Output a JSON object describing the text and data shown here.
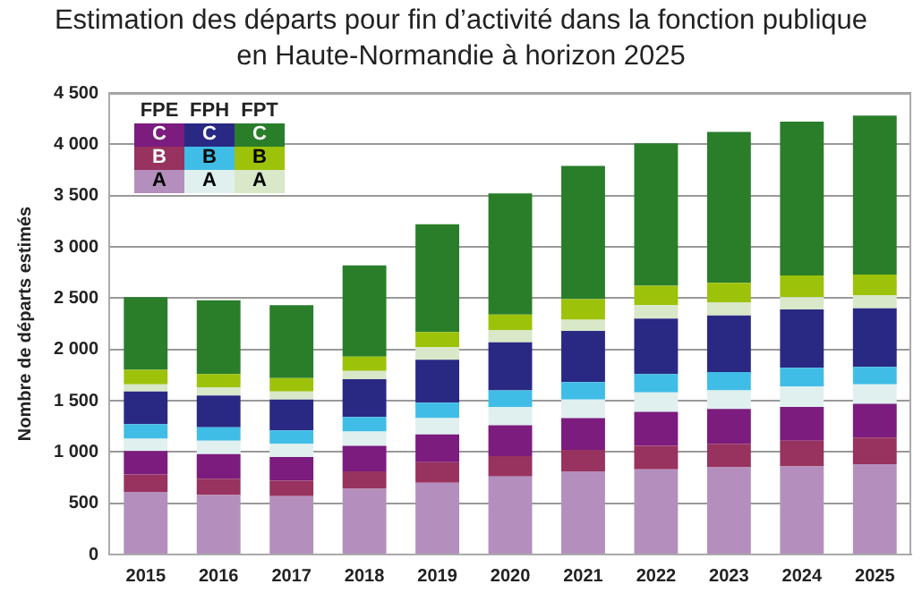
{
  "chart_data": {
    "type": "bar",
    "title": "Estimation des départs pour fin d’activité dans la fonction publique en Haute-Normandie à horizon 2025",
    "ylabel": "Nombre de départs estimés",
    "categories": [
      "2015",
      "2016",
      "2017",
      "2018",
      "2019",
      "2020",
      "2021",
      "2022",
      "2023",
      "2024",
      "2025"
    ],
    "stacked": true,
    "series": [
      {
        "name": "A",
        "color": "#b48fbd",
        "values": [
          610,
          580,
          570,
          640,
          700,
          760,
          810,
          830,
          850,
          860,
          880
        ]
      },
      {
        "name": "B",
        "color": "#98325e",
        "values": [
          170,
          160,
          150,
          170,
          200,
          200,
          210,
          230,
          230,
          250,
          260
        ]
      },
      {
        "name": "C",
        "color": "#7b1c7e",
        "values": [
          230,
          240,
          230,
          250,
          270,
          300,
          310,
          330,
          340,
          330,
          330
        ]
      },
      {
        "name": "A",
        "color": "#dff0ef",
        "values": [
          120,
          130,
          130,
          140,
          160,
          180,
          180,
          190,
          180,
          200,
          190
        ]
      },
      {
        "name": "B",
        "color": "#40bde6",
        "values": [
          140,
          130,
          130,
          140,
          150,
          160,
          170,
          180,
          180,
          180,
          170
        ]
      },
      {
        "name": "C",
        "color": "#292984",
        "values": [
          320,
          310,
          300,
          370,
          420,
          470,
          500,
          540,
          550,
          570,
          570
        ]
      },
      {
        "name": "A",
        "color": "#d8e8c8",
        "values": [
          70,
          80,
          80,
          80,
          120,
          120,
          110,
          130,
          130,
          120,
          130
        ]
      },
      {
        "name": "B",
        "color": "#9dc20a",
        "values": [
          140,
          130,
          130,
          140,
          150,
          150,
          200,
          190,
          190,
          210,
          200
        ]
      },
      {
        "name": "C",
        "color": "#2a7e2a",
        "values": [
          710,
          720,
          710,
          890,
          1050,
          1180,
          1300,
          1390,
          1470,
          1500,
          1550
        ]
      }
    ],
    "annotations": [
      "FPE",
      "FPH",
      "FPT"
    ],
    "ylim": [
      0,
      4500
    ],
    "yticks": [
      0,
      500,
      {
        "value": 1000,
        "label": "1 000"
      },
      {
        "value": 1500,
        "label": "1 500"
      },
      {
        "value": 2000,
        "label": "2 000"
      },
      {
        "value": 2500,
        "label": "2 500"
      },
      {
        "value": 3000,
        "label": "3 000"
      },
      {
        "value": 3500,
        "label": "3 500"
      },
      {
        "value": 4000,
        "label": "4 000"
      },
      {
        "value": 4500,
        "label": "4 500"
      }
    ],
    "grid": "y",
    "legend": "top left"
  }
}
